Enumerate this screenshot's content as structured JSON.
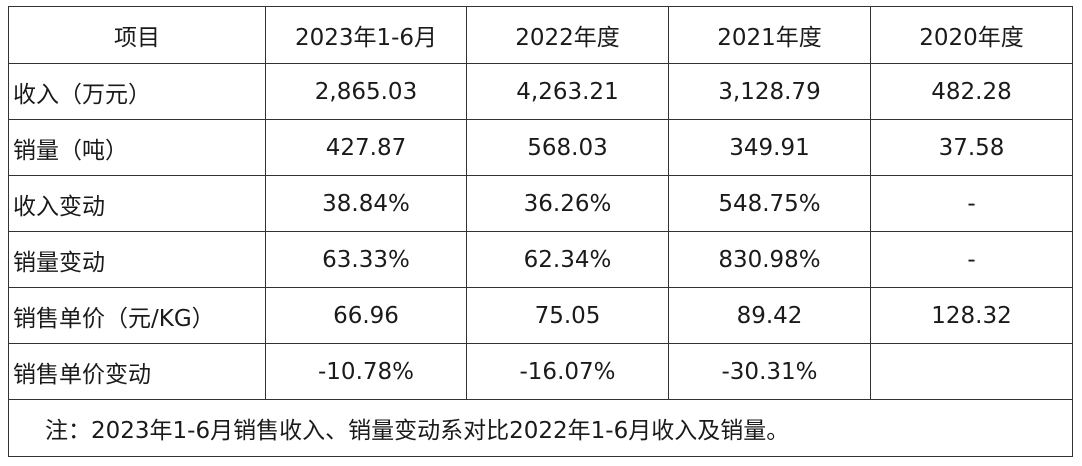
{
  "table": {
    "header": [
      "项目",
      "2023年1-6月",
      "2022年度",
      "2021年度",
      "2020年度"
    ],
    "rows": [
      [
        "收入（万元）",
        "2,865.03",
        "4,263.21",
        "3,128.79",
        "482.28"
      ],
      [
        "销量（吨）",
        "427.87",
        "568.03",
        "349.91",
        "37.58"
      ],
      [
        "收入变动",
        "38.84%",
        "36.26%",
        "548.75%",
        "-"
      ],
      [
        "销量变动",
        "63.33%",
        "62.34%",
        "830.98%",
        "-"
      ],
      [
        "销售单价（元/KG）",
        "66.96",
        "75.05",
        "89.42",
        "128.32"
      ],
      [
        "销售单价变动",
        "-10.78%",
        "-16.07%",
        "-30.31%"
      ]
    ],
    "note": "注：2023年1-6月销售收入、销量变动系对比2022年1-6月收入及销量。"
  }
}
